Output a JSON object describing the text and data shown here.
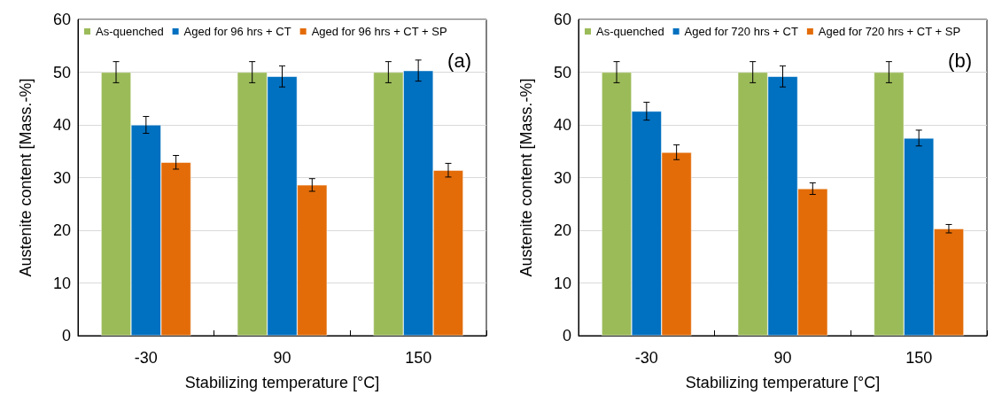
{
  "chart_data": [
    {
      "type": "bar",
      "title": "(a)",
      "xlabel": "Stabilizing temperature [°C]",
      "ylabel": "Austenite content [Mass.-%]",
      "categories": [
        "-30",
        "90",
        "150"
      ],
      "ylim": [
        0,
        60
      ],
      "yticks": [
        0,
        10,
        20,
        30,
        40,
        50,
        60
      ],
      "grid": "y",
      "legend": "top",
      "series": [
        {
          "name": "As-quenched",
          "color": "#9bbb59",
          "values": [
            50,
            50,
            50
          ],
          "errors": [
            2,
            2,
            2
          ]
        },
        {
          "name": "Aged for 96 hrs + CT",
          "color": "#0070c0",
          "values": [
            40,
            49.2,
            50.3
          ],
          "errors": [
            1.6,
            2,
            2
          ]
        },
        {
          "name": "Aged for 96 hrs + CT + SP",
          "color": "#e36c09",
          "values": [
            32.9,
            28.6,
            31.4
          ],
          "errors": [
            1.3,
            1.2,
            1.3
          ]
        }
      ]
    },
    {
      "type": "bar",
      "title": "(b)",
      "xlabel": "Stabilizing temperature [°C]",
      "ylabel": "Austenite content [Mass.-%]",
      "categories": [
        "-30",
        "90",
        "150"
      ],
      "ylim": [
        0,
        60
      ],
      "yticks": [
        0,
        10,
        20,
        30,
        40,
        50,
        60
      ],
      "grid": "y",
      "legend": "top",
      "series": [
        {
          "name": "As-quenched",
          "color": "#9bbb59",
          "values": [
            50,
            50,
            50
          ],
          "errors": [
            2,
            2,
            2
          ]
        },
        {
          "name": "Aged for 720 hrs + CT",
          "color": "#0070c0",
          "values": [
            42.6,
            49.2,
            37.5
          ],
          "errors": [
            1.7,
            2,
            1.5
          ]
        },
        {
          "name": "Aged for 720 hrs + CT + SP",
          "color": "#e36c09",
          "values": [
            34.8,
            27.9,
            20.3
          ],
          "errors": [
            1.4,
            1.1,
            0.8
          ]
        }
      ]
    }
  ]
}
